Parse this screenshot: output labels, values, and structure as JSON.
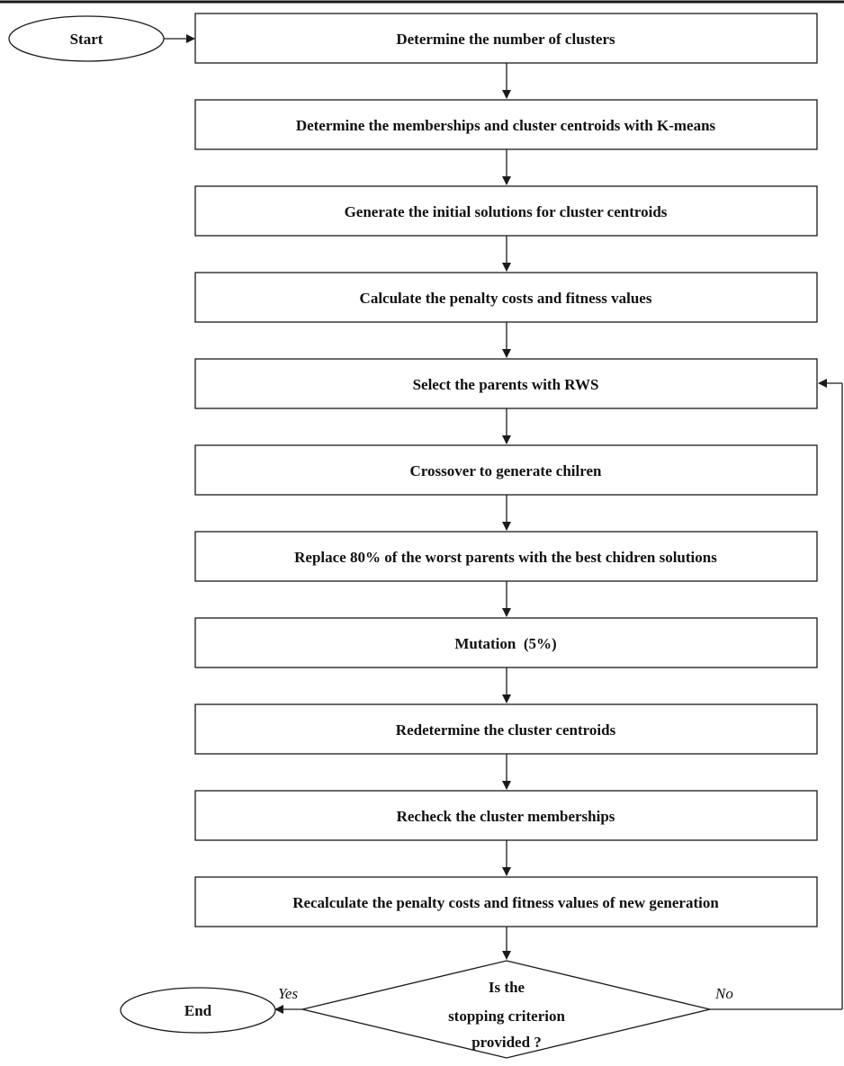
{
  "colors": {
    "stroke": "#1a1a1a",
    "fill": "#ffffff",
    "text": "#111111"
  },
  "flow": {
    "start_label": "Start",
    "end_label": "End",
    "steps": [
      "Determine the number of clusters",
      "Determine the memberships and cluster centroids with K-means",
      "Generate the initial solutions for cluster centroids",
      "Calculate the penalty costs and fitness values",
      "Select the parents with RWS",
      "Crossover to generate chilren",
      "Replace 80% of the worst parents with the best chidren solutions",
      "Mutation  (5%)",
      "Redetermine the cluster centroids",
      "Recheck the cluster memberships",
      "Recalculate the penalty costs and fitness values of new generation"
    ],
    "decision": {
      "lines": [
        "Is the",
        "stopping criterion",
        "provided ?"
      ],
      "yes_label": "Yes",
      "no_label": "No"
    }
  }
}
